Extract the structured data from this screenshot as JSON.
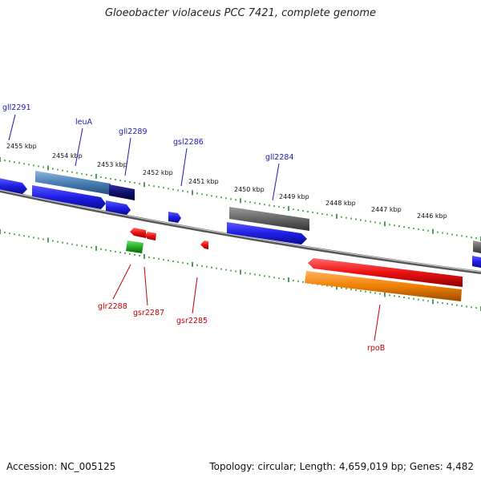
{
  "title": "Gloeobacter violaceus PCC 7421, complete genome",
  "footer": {
    "accession": "Accession: NC_005125",
    "summary": "Topology: circular; Length: 4,659,019 bp; Genes: 4,482"
  },
  "colors": {
    "forward_gene": "#1f1fe6",
    "reverse_gene": "#ee1111",
    "rRNA_like_gray": "#6b6b6b",
    "steelblue_gene": "#4a7fb5",
    "navy_gene": "#101070",
    "green_gene": "#22b022",
    "orange_gene": "#f08000",
    "tick_green": "#1a8a1a",
    "backbone": "#888888",
    "label_forward": "#1a1ab0",
    "label_reverse": "#c00000"
  },
  "kbp_labels": [
    "2455 kbp",
    "2454 kbp",
    "2453 kbp",
    "2452 kbp",
    "2451 kbp",
    "2450 kbp",
    "2449 kbp",
    "2448 kbp",
    "2447 kbp",
    "2446 kbp"
  ],
  "top_genes": [
    "gll2291",
    "leuA",
    "gll2289",
    "gsl2286",
    "gll2284"
  ],
  "bottom_genes": [
    "glr2288",
    "gsr2287",
    "gsr2285",
    "rpoB"
  ]
}
